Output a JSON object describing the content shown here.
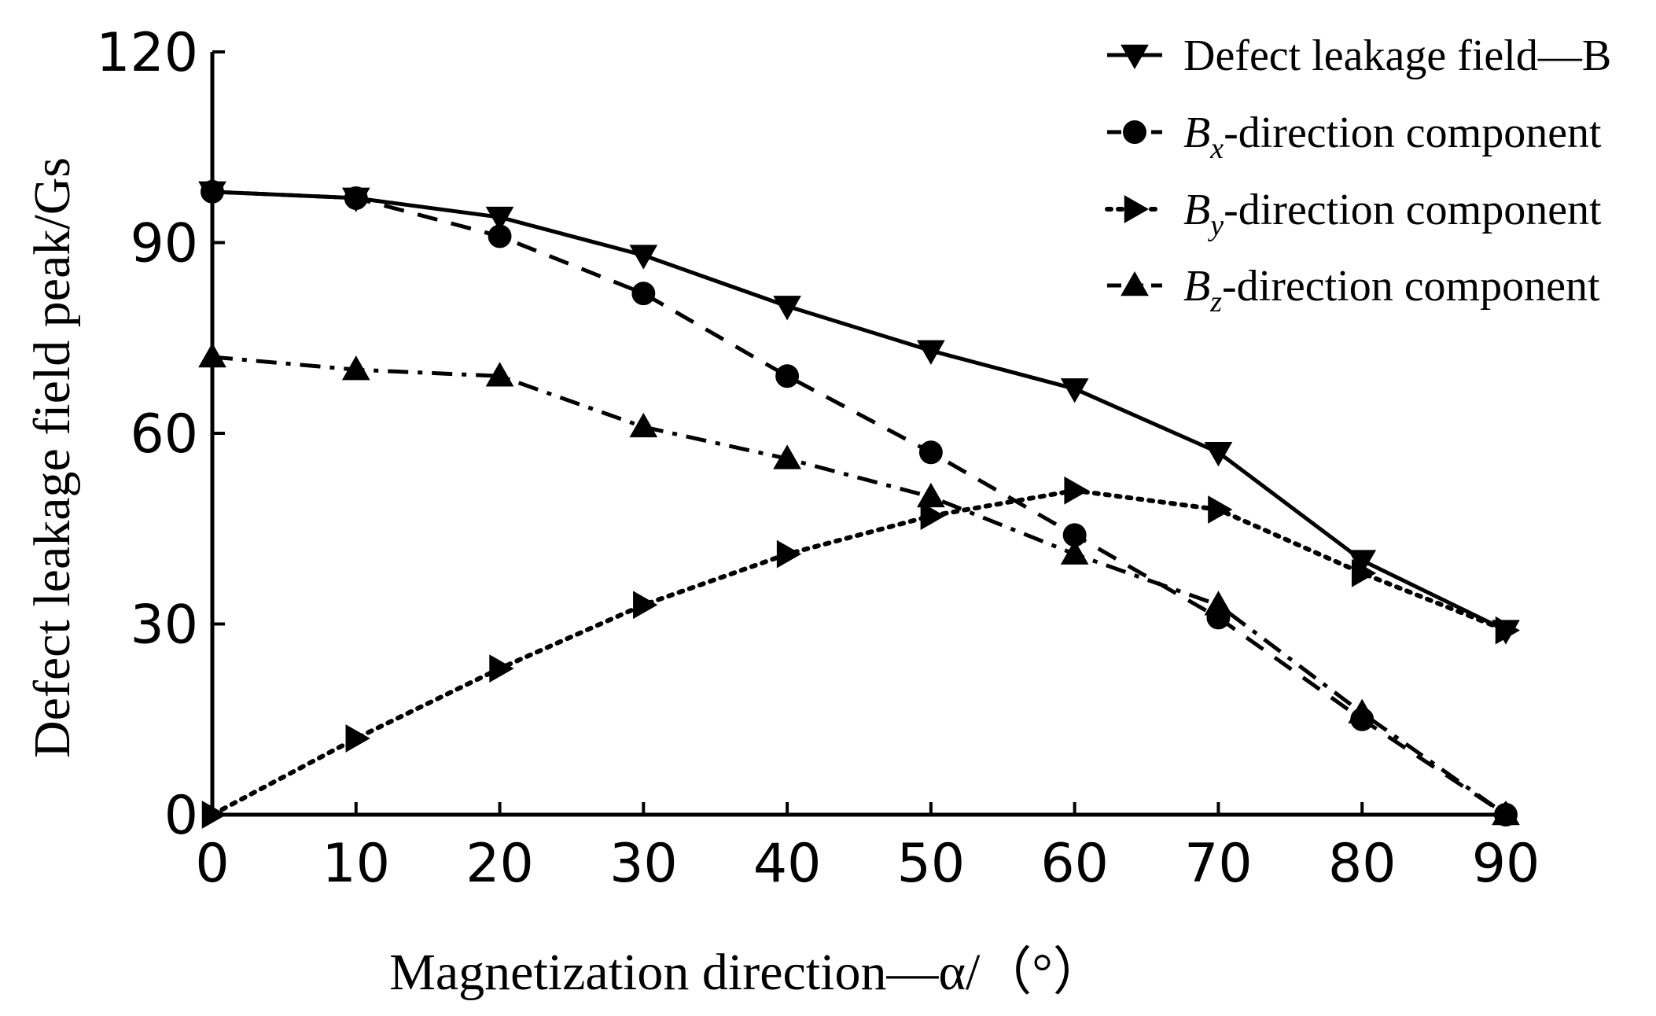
{
  "chart_data": {
    "type": "line",
    "title": "",
    "xlabel": "Magnetization direction—α/（°）",
    "ylabel": "Defect leakage field peak/Gs",
    "x": [
      0,
      10,
      20,
      30,
      40,
      50,
      60,
      70,
      80,
      90
    ],
    "xlim": [
      0,
      90
    ],
    "ylim": [
      0,
      120
    ],
    "xticks": [
      "0",
      "10",
      "20",
      "30",
      "40",
      "50",
      "60",
      "70",
      "80",
      "90"
    ],
    "yticks": [
      "0",
      "30",
      "60",
      "90",
      "120"
    ],
    "grid": false,
    "legend_position": "top-right",
    "series": [
      {
        "name": "Defect leakage field—B",
        "legend_main": "Defect leakage field—B",
        "legend_sub": "",
        "legend_rest": "",
        "values": [
          98,
          97,
          94,
          88,
          80,
          73,
          67,
          57,
          40,
          29
        ],
        "line_style": "solid",
        "marker": "triangle-down",
        "color": "#000000"
      },
      {
        "name": "Bx-direction component",
        "legend_main": "B",
        "legend_sub": "x",
        "legend_rest": "-direction component",
        "values": [
          98,
          97,
          91,
          82,
          69,
          57,
          44,
          31,
          15,
          0
        ],
        "line_style": "dashed",
        "marker": "circle",
        "color": "#000000"
      },
      {
        "name": "By-direction component",
        "legend_main": "B",
        "legend_sub": "y",
        "legend_rest": "-direction component",
        "values": [
          0,
          12,
          23,
          33,
          41,
          47,
          51,
          48,
          38,
          29
        ],
        "line_style": "dotted",
        "marker": "triangle-right",
        "color": "#000000"
      },
      {
        "name": "Bz-direction component",
        "legend_main": "B",
        "legend_sub": "z",
        "legend_rest": "-direction component",
        "values": [
          72,
          70,
          69,
          61,
          56,
          50,
          41,
          33,
          16,
          0
        ],
        "line_style": "dash-dot",
        "marker": "triangle-up",
        "color": "#000000"
      }
    ]
  }
}
